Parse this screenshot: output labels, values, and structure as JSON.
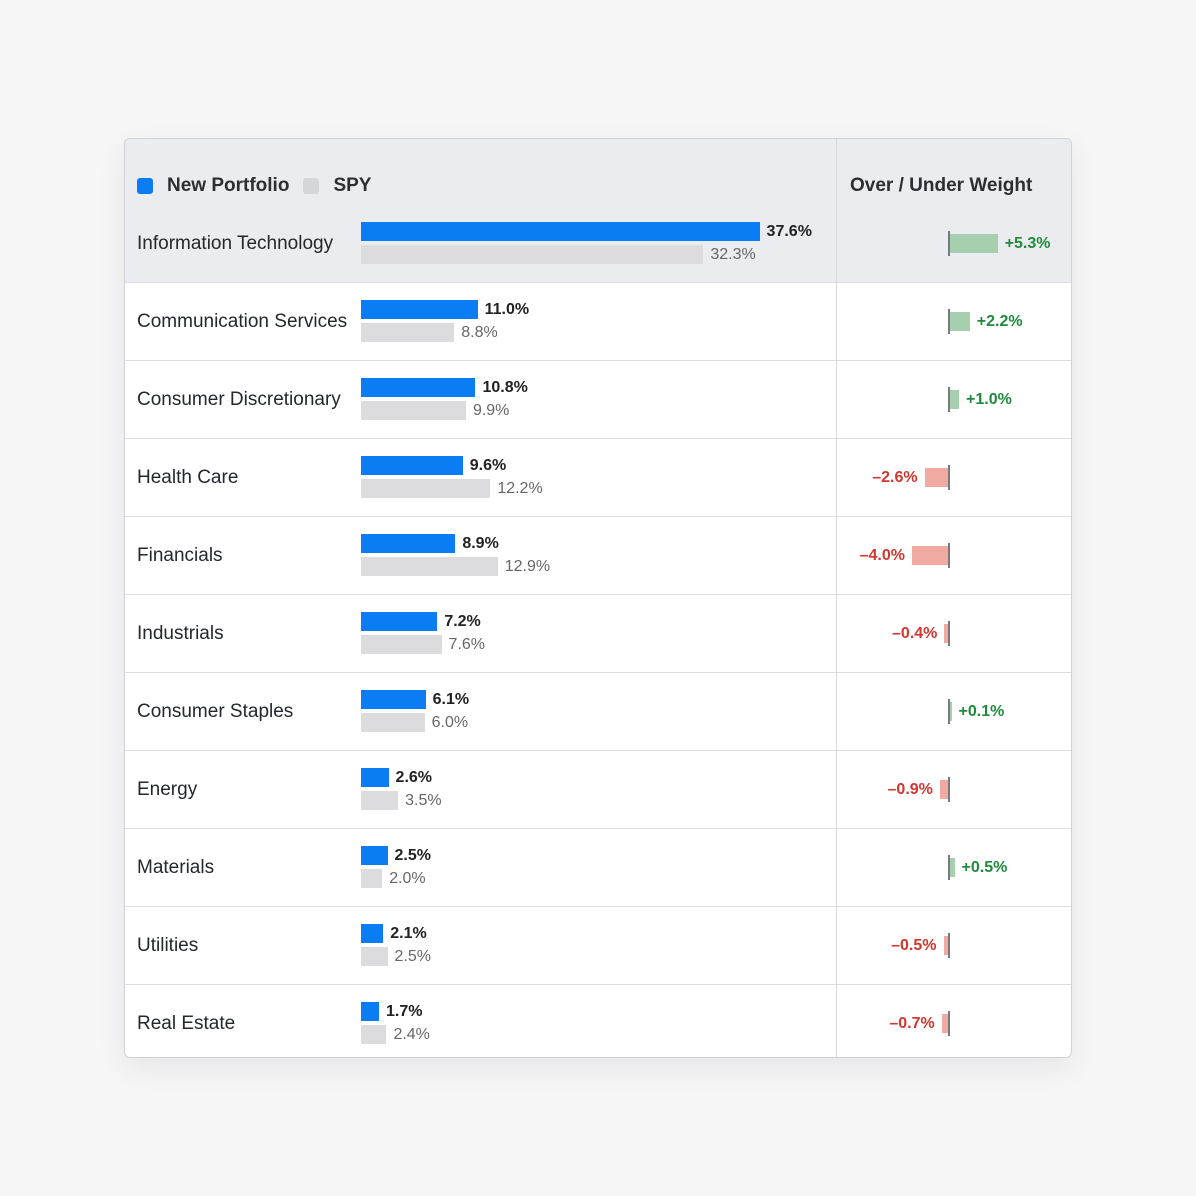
{
  "legend": {
    "portfolio_label": "New Portfolio",
    "portfolio_color": "#0a7cf4",
    "spy_label": "SPY",
    "spy_color": "#d5d6d8"
  },
  "weight_header": "Over / Under Weight",
  "chart_data": {
    "type": "bar",
    "orientation": "horizontal",
    "categories": [
      "Information Technology",
      "Communication Services",
      "Consumer Discretionary",
      "Health Care",
      "Financials",
      "Industrials",
      "Consumer Staples",
      "Energy",
      "Materials",
      "Utilities",
      "Real Estate"
    ],
    "series": [
      {
        "name": "New Portfolio",
        "values": [
          37.6,
          11.0,
          10.8,
          9.6,
          8.9,
          7.2,
          6.1,
          2.6,
          2.5,
          2.1,
          1.7
        ],
        "labels": [
          "37.6%",
          "11.0%",
          "10.8%",
          "9.6%",
          "8.9%",
          "7.2%",
          "6.1%",
          "2.6%",
          "2.5%",
          "2.1%",
          "1.7%"
        ]
      },
      {
        "name": "SPY",
        "values": [
          32.3,
          8.8,
          9.9,
          12.2,
          12.9,
          7.6,
          6.0,
          3.5,
          2.0,
          2.5,
          2.4
        ],
        "labels": [
          "32.3%",
          "8.8%",
          "9.9%",
          "12.2%",
          "12.9%",
          "7.6%",
          "6.0%",
          "3.5%",
          "2.0%",
          "2.5%",
          "2.4%"
        ]
      }
    ],
    "over_under": {
      "name": "Over / Under Weight",
      "values": [
        5.3,
        2.2,
        1.0,
        -2.6,
        -4.0,
        -0.4,
        0.1,
        -0.9,
        0.5,
        -0.5,
        -0.7
      ],
      "labels": [
        "+5.3%",
        "+2.2%",
        "+1.0%",
        "–2.6%",
        "–4.0%",
        "–0.4%",
        "+0.1%",
        "–0.9%",
        "+0.5%",
        "–0.5%",
        "–0.7%"
      ],
      "positive_color": "#a6cfaf",
      "negative_color": "#f0aaa1"
    },
    "highlighted_category": "Information Technology",
    "legend_position": "top-left",
    "grid": false
  }
}
